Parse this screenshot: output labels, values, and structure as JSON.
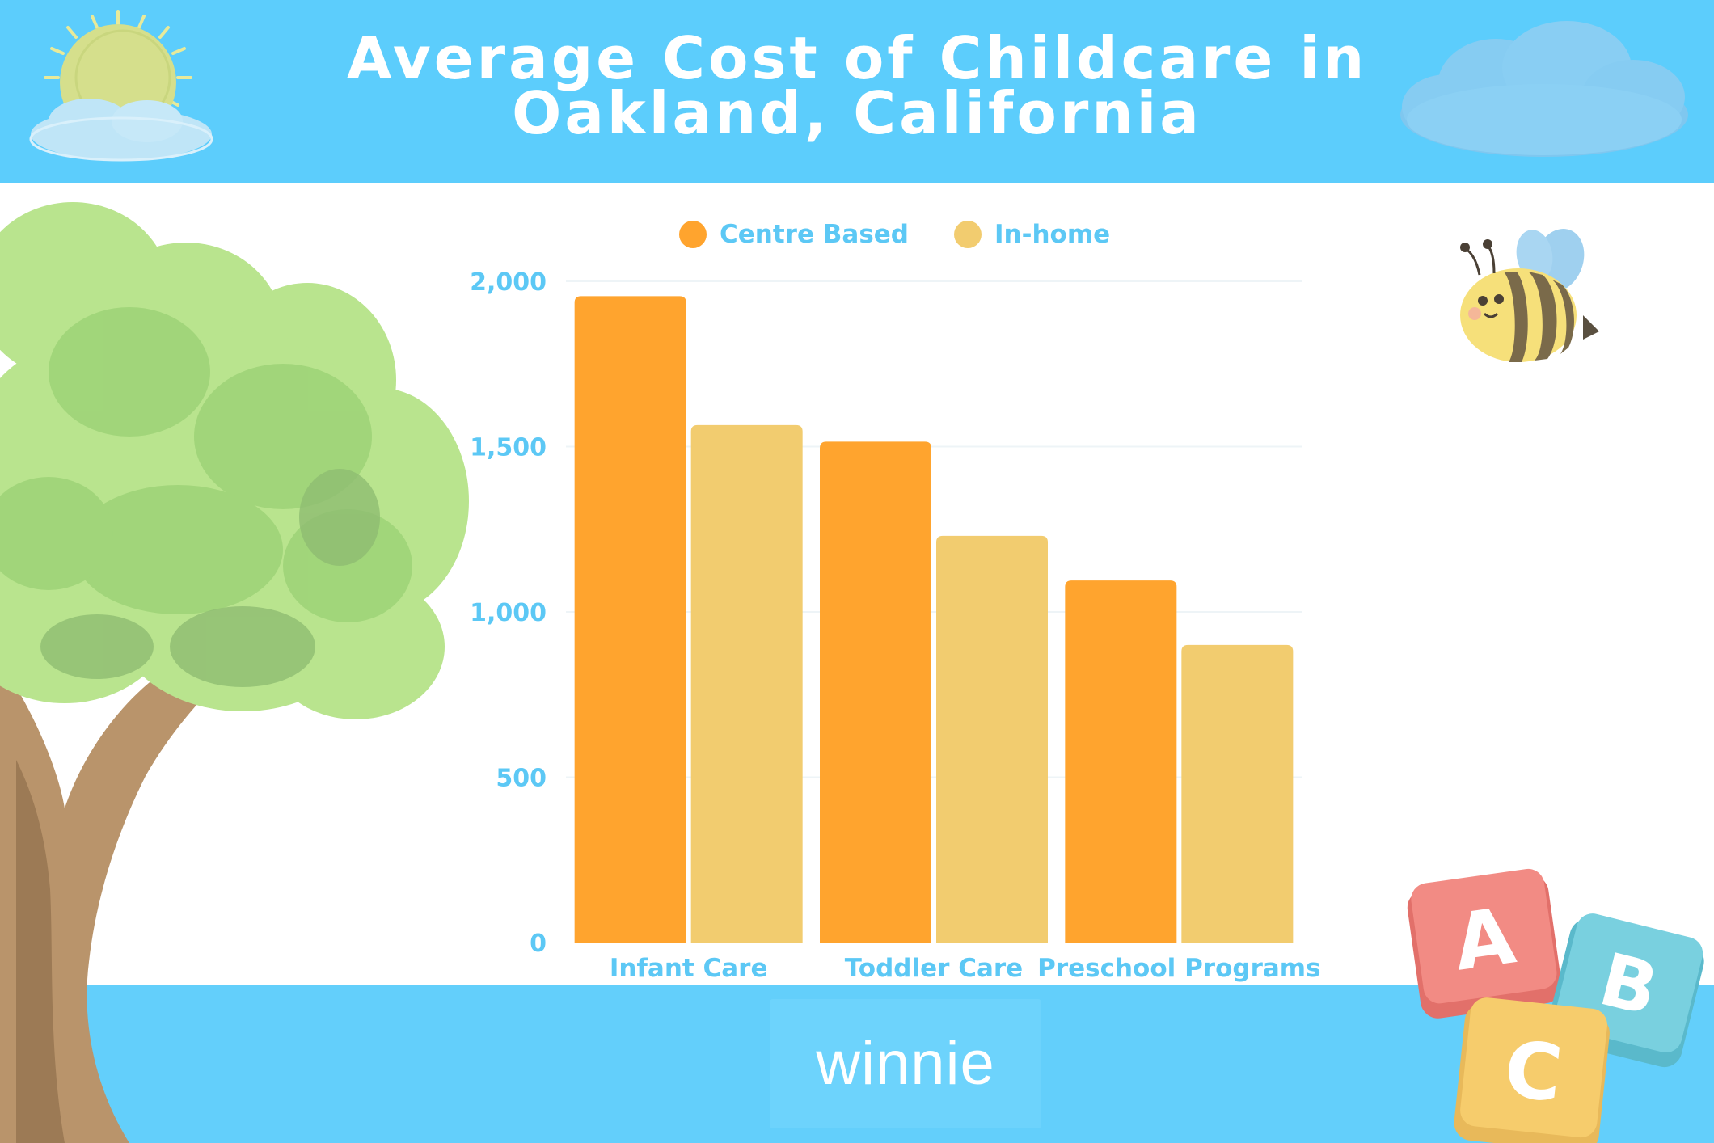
{
  "header": {
    "title_line1": "Average Cost of Childcare in",
    "title_line2": "Oakland, California"
  },
  "footer": {
    "logo": "winnie"
  },
  "colors": {
    "header_bg": "#5ccdfc",
    "axis_text": "#5cc8f5",
    "centre_based": "#ffa42e",
    "in_home": "#f2cc6f"
  },
  "decorations": {
    "sun": "sun-icon",
    "cloud_left": "cloud-icon",
    "cloud_right": "cloud-icon",
    "tree": "tree-illustration",
    "bee": "bee-icon",
    "blocks": [
      "A",
      "B",
      "C"
    ]
  },
  "chart_data": {
    "type": "bar",
    "title": "Average Cost of Childcare in Oakland, California",
    "xlabel": "",
    "ylabel": "",
    "categories": [
      "Infant Care",
      "Toddler Care",
      "Preschool Programs"
    ],
    "series": [
      {
        "name": "Centre Based",
        "color": "#ffa42e",
        "values": [
          1955,
          1515,
          1095
        ]
      },
      {
        "name": "In-home",
        "color": "#f2cc6f",
        "values": [
          1565,
          1230,
          900
        ]
      }
    ],
    "ylim": [
      0,
      2000
    ],
    "yticks": [
      0,
      500,
      1000,
      1500,
      2000
    ],
    "ytick_labels": [
      "0",
      "500",
      "1,000",
      "1,500",
      "2,000"
    ],
    "legend": "top",
    "grid": true
  }
}
